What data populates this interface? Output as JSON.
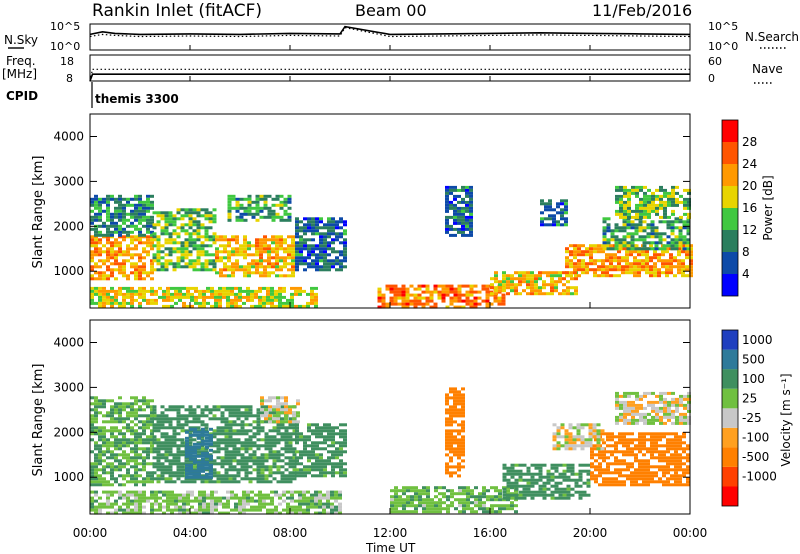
{
  "header": {
    "station": "Rankin Inlet (fitACF)",
    "beam": "Beam 00",
    "date": "11/Feb/2016"
  },
  "small_panels": {
    "nsky_label": "N.Sky",
    "nsky_ticks": [
      "10^5",
      "10^0"
    ],
    "nsearch_label": "N.Search",
    "nsearch_ticks": [
      "10^5",
      "10^0"
    ],
    "freq_label": "Freq.",
    "freq_unit": "[MHz]",
    "freq_ticks": [
      "18",
      "8"
    ],
    "nave_label": "Nave",
    "nave_ticks": [
      "60",
      "0"
    ],
    "cpid_label": "CPID",
    "cpid_value": "themis 3300"
  },
  "axes": {
    "x_ticks": [
      "00:00",
      "04:00",
      "08:00",
      "12:00",
      "16:00",
      "20:00",
      "00:00"
    ],
    "xlabel": "Time UT",
    "y_ticks": [
      "4000",
      "3000",
      "2000",
      "1000"
    ],
    "ylabel": "Slant Range [km]"
  },
  "colorbars": {
    "power": {
      "label": "Power [dB]",
      "ticks": [
        "28",
        "24",
        "20",
        "16",
        "12",
        "8",
        "4"
      ],
      "colors": [
        "#0000ff",
        "#0d4aa8",
        "#2b7e5e",
        "#40c840",
        "#e8d400",
        "#ff9900",
        "#ff5500",
        "#ff0000"
      ]
    },
    "velocity": {
      "label": "Velocity [m s⁻¹]",
      "ticks": [
        "1000",
        "500",
        "100",
        "25",
        "-25",
        "-100",
        "-500",
        "-1000"
      ],
      "colors": [
        "#1f3fbf",
        "#2e7a9a",
        "#3f8f5f",
        "#70c040",
        "#c8c8c8",
        "#ffa020",
        "#ff8000",
        "#ff4000",
        "#ff0000"
      ]
    }
  },
  "chart_data": [
    {
      "type": "line",
      "title": "N.Sky / N.Search",
      "x_hours": [
        0,
        0.5,
        1,
        2,
        4,
        6,
        8,
        10,
        10.2,
        12,
        14,
        16,
        18,
        20,
        22,
        24
      ],
      "series": [
        {
          "name": "N.Sky",
          "values": [
            3.0,
            3.5,
            3.2,
            3.0,
            3.1,
            3.0,
            3.2,
            3.1,
            4.5,
            3.0,
            3.1,
            3.2,
            3.3,
            3.2,
            3.1,
            3.0
          ]
        },
        {
          "name": "N.Search",
          "values": [
            2.6,
            3.0,
            2.8,
            2.6,
            2.7,
            2.6,
            2.8,
            2.7,
            4.3,
            2.6,
            2.7,
            2.8,
            2.9,
            2.8,
            2.7,
            2.6
          ]
        }
      ],
      "ylim": [
        0,
        5
      ]
    },
    {
      "type": "line",
      "title": "Freq. / Nave",
      "x_hours": [
        0,
        0.1,
        4,
        8,
        12,
        16,
        20,
        24
      ],
      "series": [
        {
          "name": "Freq.",
          "values": [
            8,
            10.6,
            10.6,
            10.6,
            10.6,
            10.6,
            10.6,
            10.6
          ]
        },
        {
          "name": "Nave",
          "values": [
            0,
            27,
            27,
            27,
            27,
            27,
            27,
            27
          ]
        }
      ],
      "ylim_freq": [
        8,
        18
      ],
      "ylim_nave": [
        0,
        60
      ]
    },
    {
      "type": "heatmap",
      "title": "Power [dB]",
      "xlim_hours": [
        0,
        24
      ],
      "ylim_km": [
        180,
        4500
      ],
      "regions": [
        {
          "t0": 0.0,
          "t1": 2.5,
          "r0": 800,
          "r1": 1800,
          "value": 22
        },
        {
          "t0": 0.0,
          "t1": 2.5,
          "r0": 1800,
          "r1": 2700,
          "value": 10
        },
        {
          "t0": 2.5,
          "t1": 5.0,
          "r0": 1000,
          "r1": 2400,
          "value": 14
        },
        {
          "t0": 5.0,
          "t1": 8.2,
          "r0": 900,
          "r1": 1800,
          "value": 20
        },
        {
          "t0": 5.5,
          "t1": 8.0,
          "r0": 2100,
          "r1": 2700,
          "value": 12
        },
        {
          "t0": 8.2,
          "t1": 10.2,
          "r0": 1000,
          "r1": 2200,
          "value": 8
        },
        {
          "t0": 0.0,
          "t1": 9.0,
          "r0": 200,
          "r1": 650,
          "value": 18
        },
        {
          "t0": 11.5,
          "t1": 16.5,
          "r0": 200,
          "r1": 700,
          "value": 24
        },
        {
          "t0": 16.0,
          "t1": 19.5,
          "r0": 500,
          "r1": 1000,
          "value": 20
        },
        {
          "t0": 19.0,
          "t1": 24.0,
          "r0": 900,
          "r1": 1600,
          "value": 22
        },
        {
          "t0": 20.5,
          "t1": 24.0,
          "r0": 1500,
          "r1": 2200,
          "value": 12
        },
        {
          "t0": 21.0,
          "t1": 24.0,
          "r0": 2200,
          "r1": 2900,
          "value": 14
        },
        {
          "t0": 14.2,
          "t1": 15.2,
          "r0": 1800,
          "r1": 2900,
          "value": 8
        },
        {
          "t0": 18.0,
          "t1": 19.0,
          "r0": 2000,
          "r1": 2600,
          "value": 8
        }
      ]
    },
    {
      "type": "heatmap",
      "title": "Velocity",
      "xlim_hours": [
        0,
        24
      ],
      "ylim_km": [
        180,
        4500
      ],
      "regions": [
        {
          "t0": 0.0,
          "t1": 2.5,
          "r0": 800,
          "r1": 2800,
          "value": 100
        },
        {
          "t0": 2.5,
          "t1": 8.2,
          "r0": 900,
          "r1": 2600,
          "value": 150
        },
        {
          "t0": 3.8,
          "t1": 4.8,
          "r0": 1000,
          "r1": 2100,
          "value": 800
        },
        {
          "t0": 6.8,
          "t1": 8.3,
          "r0": 2200,
          "r1": 2800,
          "value": 0
        },
        {
          "t0": 8.2,
          "t1": 10.2,
          "r0": 1000,
          "r1": 2200,
          "value": 150
        },
        {
          "t0": 0.0,
          "t1": 10.0,
          "r0": 200,
          "r1": 700,
          "value": 60
        },
        {
          "t0": 12.0,
          "t1": 17.0,
          "r0": 200,
          "r1": 800,
          "value": 80
        },
        {
          "t0": 16.5,
          "t1": 20.0,
          "r0": 500,
          "r1": 1300,
          "value": 150
        },
        {
          "t0": 20.0,
          "t1": 24.0,
          "r0": 800,
          "r1": 2000,
          "value": -300
        },
        {
          "t0": 18.5,
          "t1": 20.5,
          "r0": 1600,
          "r1": 2200,
          "value": 0
        },
        {
          "t0": 21.0,
          "t1": 24.0,
          "r0": 2200,
          "r1": 2900,
          "value": 0
        },
        {
          "t0": 14.2,
          "t1": 15.0,
          "r0": 1000,
          "r1": 3000,
          "value": -200
        }
      ]
    }
  ]
}
